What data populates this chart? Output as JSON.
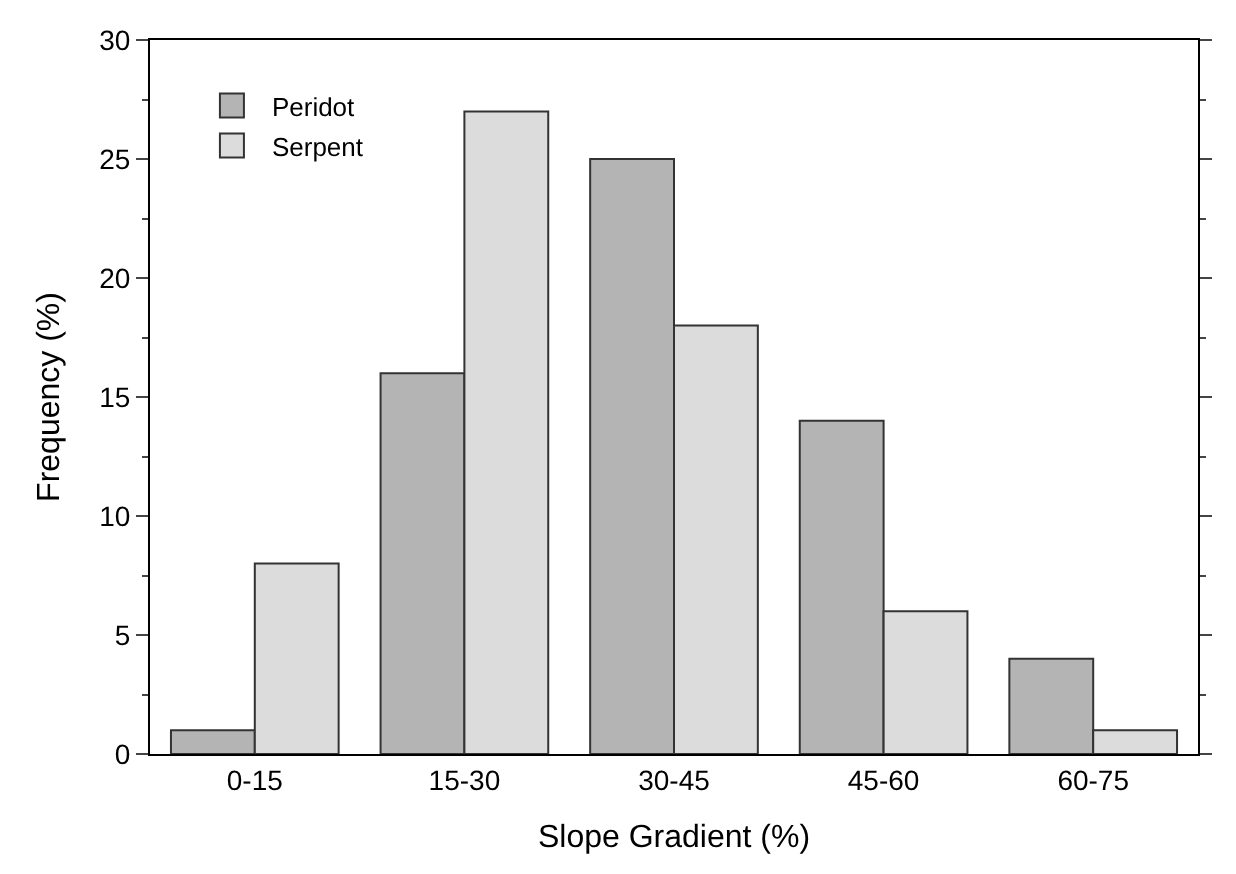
{
  "chart_data": {
    "type": "bar",
    "xlabel": "Slope Gradient (%)",
    "ylabel": "Frequency (%)",
    "categories": [
      "0-15",
      "15-30",
      "30-45",
      "45-60",
      "60-75"
    ],
    "series": [
      {
        "name": "Peridot",
        "color": "#b4b4b4",
        "values": [
          1,
          16,
          25,
          14,
          4
        ]
      },
      {
        "name": "Serpent",
        "color": "#dcdcdc",
        "values": [
          8,
          27,
          18,
          6,
          1
        ]
      }
    ],
    "ylim": [
      0,
      30
    ],
    "yticks": [
      0,
      5,
      10,
      15,
      20,
      25,
      30
    ],
    "legend": "top left"
  }
}
